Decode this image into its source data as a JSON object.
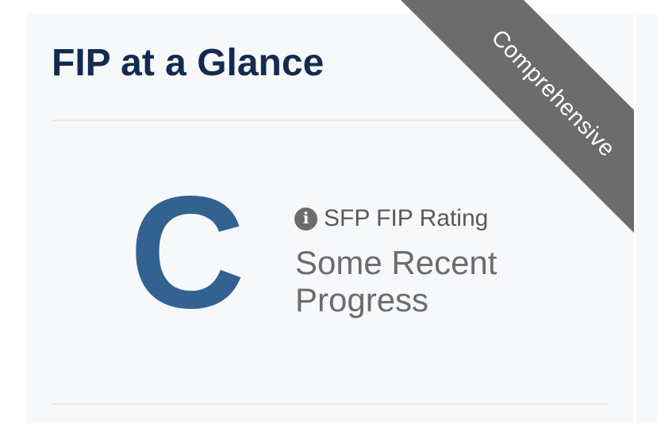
{
  "card": {
    "title": "FIP at a Glance",
    "ribbon": {
      "label": "Comprehensive"
    },
    "rating": {
      "grade": "C",
      "info_icon_glyph": "i",
      "label": "SFP FIP Rating",
      "description": "Some Recent Progress"
    }
  },
  "colors": {
    "page-bg": "#ffffff",
    "card-bg": "#f7f8fa",
    "divider": "#e8e8e9",
    "title-navy": "#132b50",
    "grade-blue": "#336291",
    "label-gray": "#58595b",
    "desc-gray": "#6b6c6e",
    "ribbon-gray": "#6c6c6c",
    "ribbon-text": "#ffffff"
  }
}
